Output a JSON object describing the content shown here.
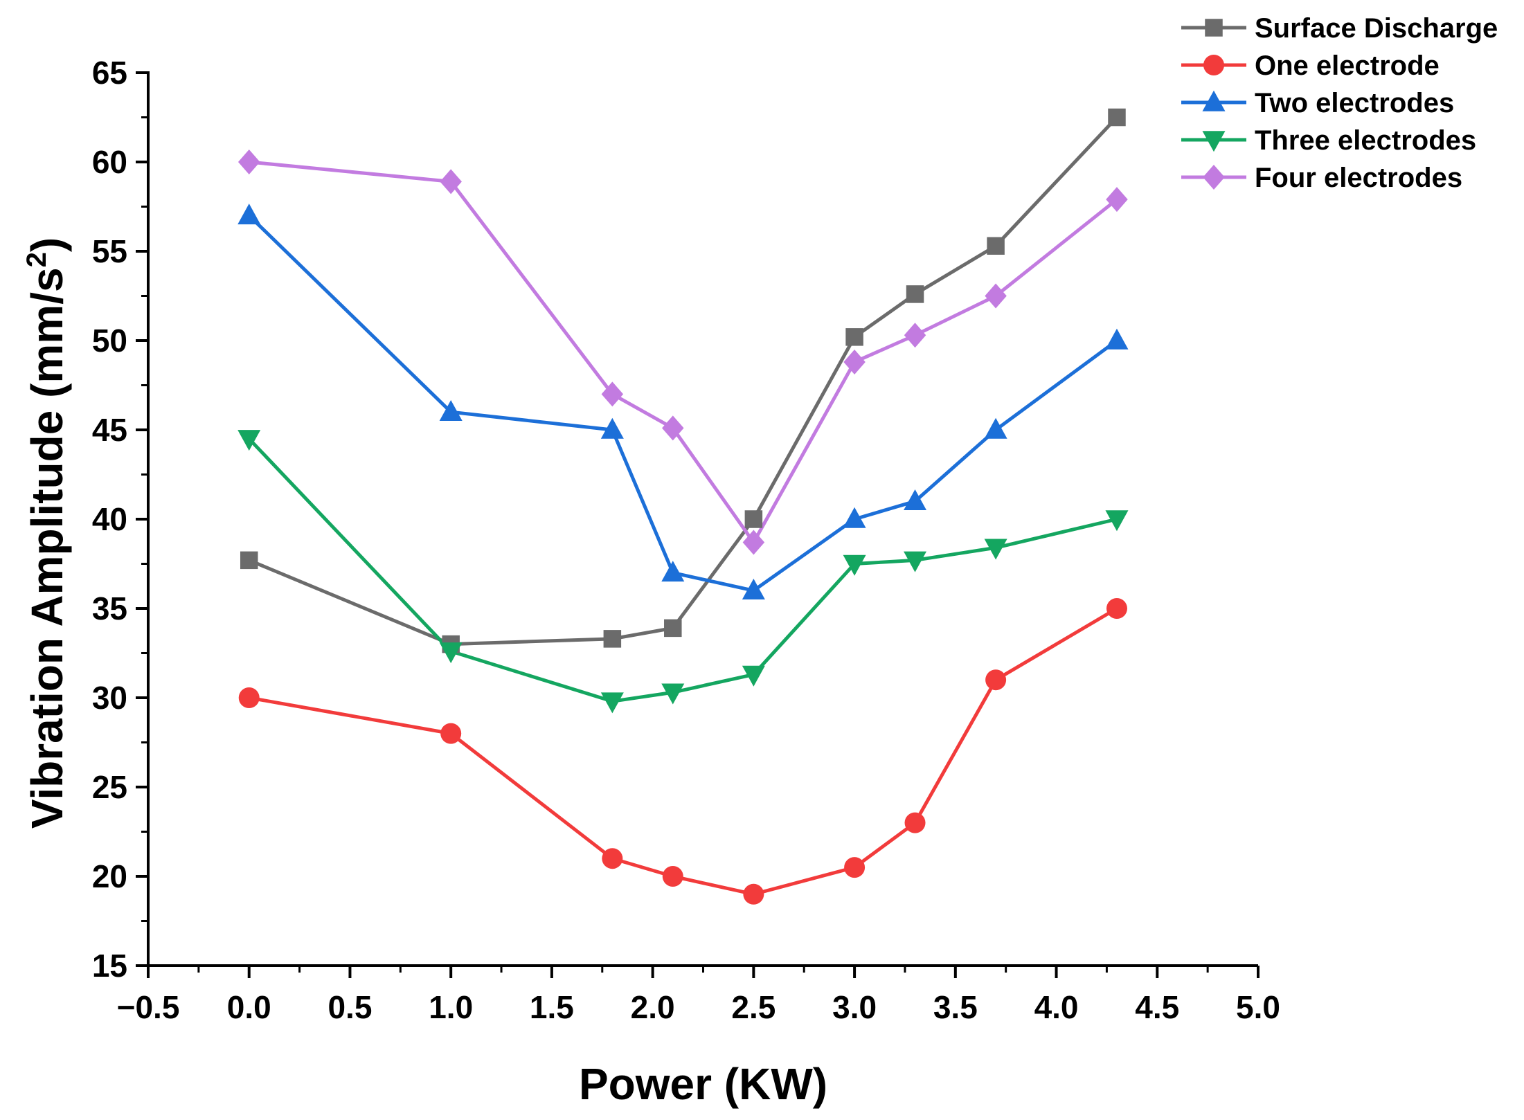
{
  "chart_data": {
    "type": "line",
    "xlabel": "Power (KW)",
    "ylabel": "Vibration Amplitude (mm/s",
    "ylabel_superscript": "2",
    "ylabel_close": ")",
    "xlim": [
      -0.5,
      5.0
    ],
    "ylim": [
      15,
      65
    ],
    "xticks": [
      -0.5,
      0.0,
      0.5,
      1.0,
      1.5,
      2.0,
      2.5,
      3.0,
      3.5,
      4.0,
      4.5,
      5.0
    ],
    "xtick_labels": [
      "−0.5",
      "0.0",
      "0.5",
      "1.0",
      "1.5",
      "2.0",
      "2.5",
      "3.0",
      "3.5",
      "4.0",
      "4.5",
      "5.0"
    ],
    "yticks": [
      15,
      20,
      25,
      30,
      35,
      40,
      45,
      50,
      55,
      60,
      65
    ],
    "ytick_labels": [
      "15",
      "20",
      "25",
      "30",
      "35",
      "40",
      "45",
      "50",
      "55",
      "60",
      "65"
    ],
    "grid": false,
    "legend_position": "top-right",
    "x": [
      0.0,
      1.0,
      1.8,
      2.1,
      2.5,
      3.0,
      3.3,
      3.7,
      4.3
    ],
    "series": [
      {
        "name": "Surface Discharge",
        "color": "#6b6b6b",
        "marker": "square",
        "values": [
          37.7,
          33.0,
          33.3,
          33.9,
          40.0,
          50.2,
          52.6,
          55.3,
          62.5
        ]
      },
      {
        "name": "One electrode",
        "color": "#f23b3b",
        "marker": "circle",
        "values": [
          30.0,
          28.0,
          21.0,
          20.0,
          19.0,
          20.5,
          23.0,
          31.0,
          35.0
        ]
      },
      {
        "name": "Two electrodes",
        "color": "#1c6fd8",
        "marker": "triangle-up",
        "values": [
          57.0,
          46.0,
          45.0,
          37.0,
          36.0,
          40.0,
          41.0,
          45.0,
          50.0
        ]
      },
      {
        "name": "Three electrodes",
        "color": "#14a660",
        "marker": "triangle-down",
        "values": [
          44.5,
          32.6,
          29.8,
          30.3,
          31.3,
          37.5,
          37.7,
          38.4,
          40.0
        ]
      },
      {
        "name": "Four electrodes",
        "color": "#c27be0",
        "marker": "diamond",
        "values": [
          60.0,
          58.9,
          47.0,
          45.1,
          38.7,
          48.8,
          50.3,
          52.5,
          57.9
        ]
      }
    ]
  }
}
